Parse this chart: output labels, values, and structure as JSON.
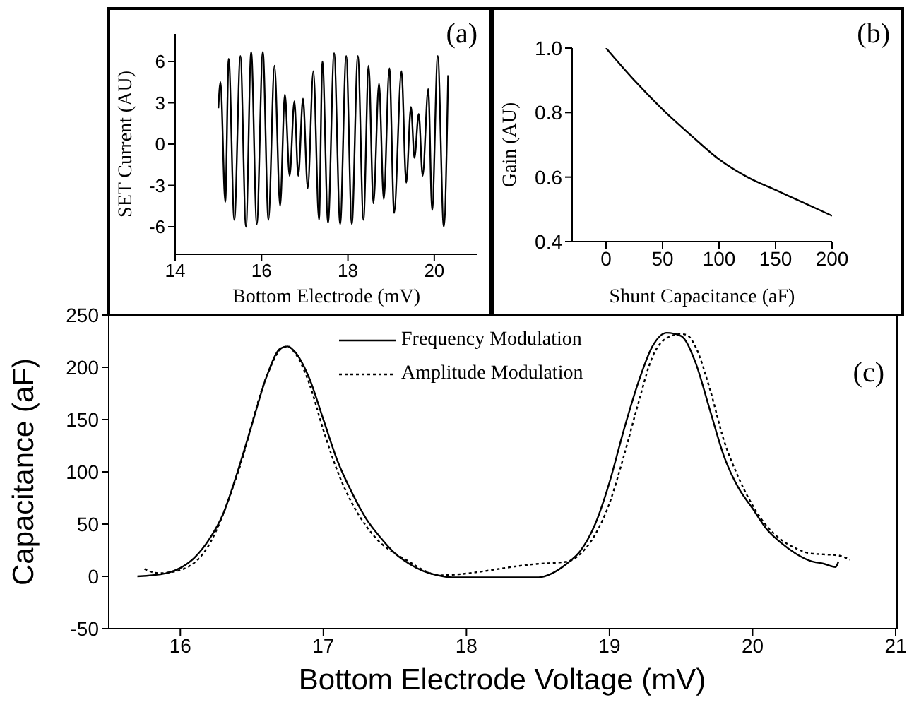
{
  "chart_data": [
    {
      "type": "line",
      "xlabel": "Bottom Electrode (mV)",
      "ylabel": "SET Current (AU)",
      "annotations": [
        "(a)"
      ],
      "xlim": [
        14,
        21
      ],
      "xticks": [
        14,
        16,
        18,
        20
      ],
      "ylim": [
        -8,
        8
      ],
      "yticks": [
        -6,
        -3,
        0,
        3,
        6
      ],
      "series": [
        {
          "color": "#000000",
          "x": [
            15.0,
            15.05,
            15.16,
            15.24,
            15.37,
            15.51,
            15.64,
            15.76,
            15.89,
            16.03,
            16.16,
            16.3,
            16.43,
            16.54,
            16.65,
            16.76,
            16.85,
            16.96,
            17.07,
            17.2,
            17.33,
            17.41,
            17.54,
            17.68,
            17.82,
            17.96,
            18.09,
            18.23,
            18.36,
            18.48,
            18.59,
            18.72,
            18.83,
            18.96,
            19.07,
            19.24,
            19.35,
            19.46,
            19.54,
            19.64,
            19.73,
            19.86,
            19.95,
            20.08,
            20.22,
            20.32
          ],
          "values": [
            2.6,
            4.5,
            -4.2,
            6.2,
            -5.5,
            6.4,
            -6,
            6.7,
            -5.8,
            6.7,
            -5.5,
            5.7,
            -4.5,
            3.6,
            -2.3,
            3.1,
            -2.3,
            3.3,
            -3.2,
            5.3,
            -5.5,
            6,
            -5.7,
            6.6,
            -5.8,
            6.4,
            -5.8,
            6.4,
            -5.5,
            5.7,
            -4.3,
            4.4,
            -4,
            5.5,
            -5,
            5.3,
            -2.8,
            2.7,
            -1,
            2.2,
            -2.3,
            4,
            -4.8,
            6.4,
            -6,
            5
          ]
        }
      ]
    },
    {
      "type": "line",
      "xlabel": "Shunt Capacitance (aF)",
      "ylabel": "Gain (AU)",
      "annotations": [
        "(b)"
      ],
      "xlim": [
        -30,
        200
      ],
      "xticks": [
        0,
        50,
        100,
        150,
        200
      ],
      "ylim": [
        0.4,
        1
      ],
      "yticks": [
        0.4,
        0.6,
        0.8,
        {
          "value": 1,
          "label": "1.0"
        }
      ],
      "series": [
        {
          "color": "#000000",
          "x": [
            0,
            25,
            50,
            75,
            100,
            125,
            150,
            175,
            200
          ],
          "values": [
            1,
            0.9,
            0.81,
            0.73,
            0.655,
            0.6,
            0.56,
            0.52,
            0.48
          ]
        }
      ]
    },
    {
      "type": "line",
      "xlabel": "Bottom Electrode Voltage (mV)",
      "ylabel": "Capacitance (aF)",
      "annotations": [
        "(c)"
      ],
      "xlim": [
        15.5,
        21
      ],
      "xticks": [
        16,
        17,
        18,
        19,
        20,
        21
      ],
      "ylim": [
        -50,
        250
      ],
      "yticks": [
        -50,
        0,
        50,
        100,
        150,
        200,
        250
      ],
      "legend": "top",
      "series": [
        {
          "name": "Frequency Modulation",
          "color": "#000000",
          "line_style": "solid",
          "x": [
            15.7,
            15.9,
            16.0,
            16.1,
            16.2,
            16.3,
            16.4,
            16.5,
            16.6,
            16.7,
            16.75,
            16.8,
            16.9,
            17.0,
            17.1,
            17.2,
            17.3,
            17.4,
            17.5,
            17.6,
            17.7,
            17.8,
            17.9,
            18.0,
            18.5,
            18.6,
            18.7,
            18.8,
            18.9,
            19.0,
            19.1,
            19.2,
            19.3,
            19.4,
            19.5,
            19.6,
            19.7,
            19.8,
            19.9,
            20.0,
            20.1,
            20.2,
            20.3,
            20.4,
            20.5,
            20.58,
            20.6
          ],
          "values": [
            0,
            3,
            8,
            18,
            35,
            60,
            100,
            145,
            190,
            218,
            220,
            215,
            190,
            150,
            110,
            80,
            55,
            37,
            22,
            12,
            5,
            1,
            -1,
            -1,
            -1,
            3,
            12,
            25,
            50,
            90,
            140,
            185,
            220,
            233,
            230,
            205,
            160,
            115,
            85,
            65,
            45,
            32,
            22,
            15,
            12,
            9,
            14
          ]
        },
        {
          "name": "Amplitude Modulation",
          "color": "#000000",
          "line_style": "dotted",
          "x": [
            15.75,
            15.85,
            16.0,
            16.2,
            16.4,
            16.6,
            16.7,
            16.75,
            16.8,
            16.9,
            17.0,
            17.1,
            17.2,
            17.3,
            17.4,
            17.5,
            17.6,
            17.7,
            17.8,
            18.5,
            18.7,
            18.8,
            18.9,
            19.0,
            19.1,
            19.2,
            19.3,
            19.4,
            19.5,
            19.55,
            19.6,
            19.7,
            19.8,
            19.9,
            20.0,
            20.1,
            20.2,
            20.3,
            20.4,
            20.5,
            20.6,
            20.68
          ],
          "values": [
            7,
            3,
            6,
            30,
            98,
            190,
            217,
            220,
            214,
            185,
            140,
            100,
            70,
            48,
            32,
            22,
            14,
            6,
            1,
            12,
            14,
            22,
            40,
            70,
            115,
            165,
            210,
            228,
            232,
            230,
            220,
            180,
            130,
            95,
            68,
            48,
            35,
            27,
            22,
            21,
            20,
            16
          ]
        }
      ]
    }
  ]
}
